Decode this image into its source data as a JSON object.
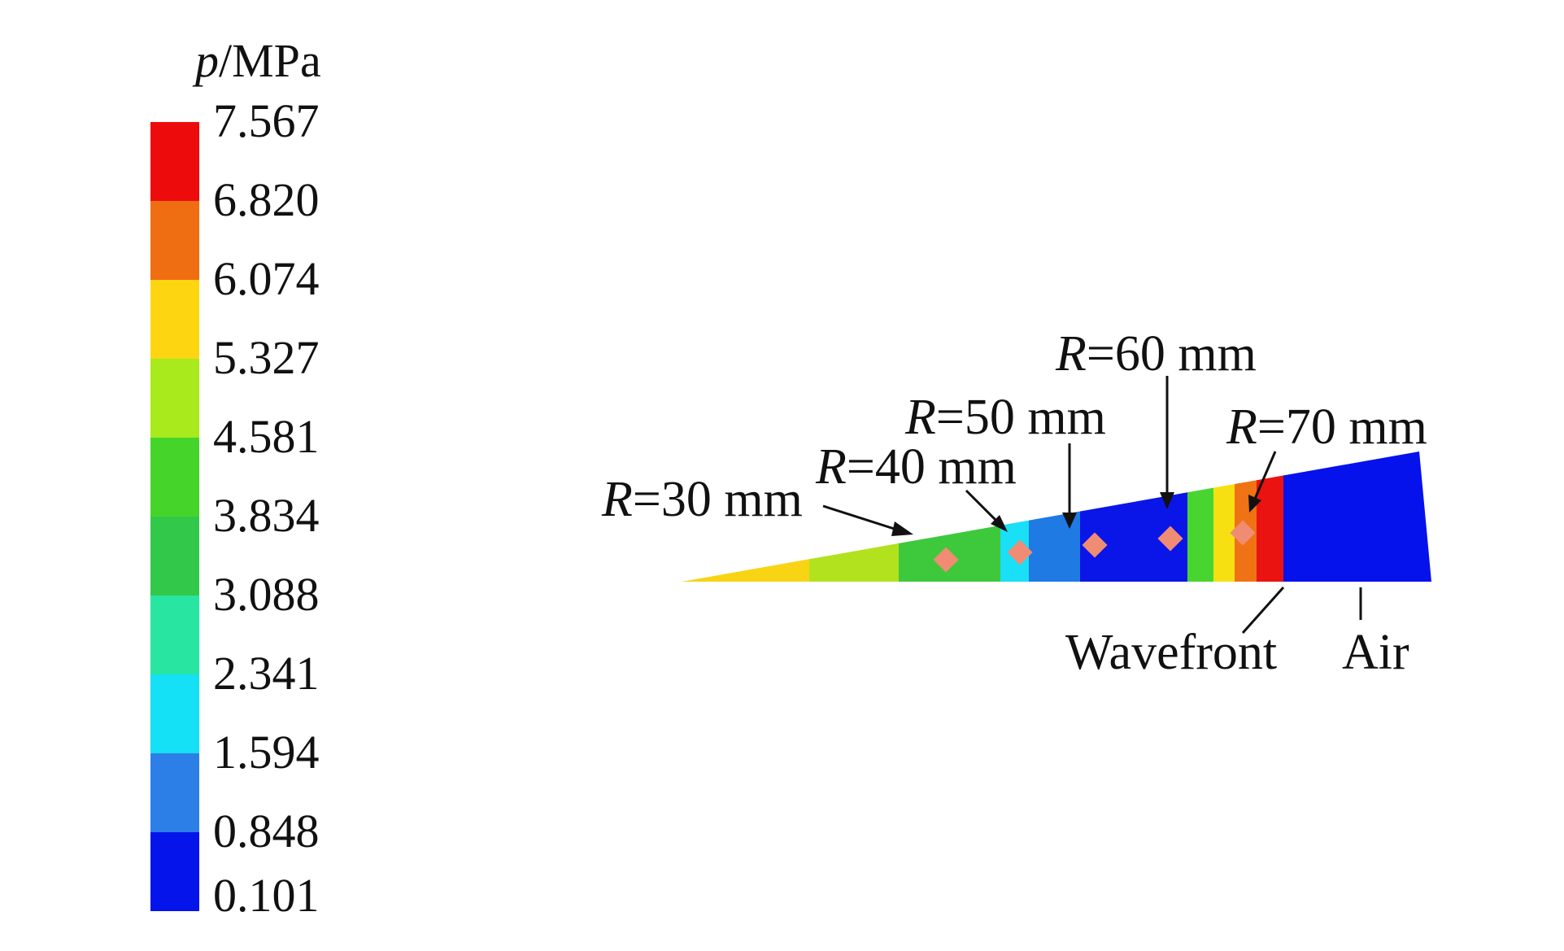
{
  "legend": {
    "unit_symbol": "p",
    "unit_rest": "/MPa",
    "levels": [
      "7.567",
      "6.820",
      "6.074",
      "5.327",
      "4.581",
      "3.834",
      "3.088",
      "2.341",
      "1.594",
      "0.848",
      "0.101"
    ],
    "colors": [
      "#ee0b0b",
      "#ef6e12",
      "#fdd611",
      "#a8ea1c",
      "#45d52a",
      "#32c84a",
      "#28e6a2",
      "#14e0f6",
      "#2d7fe8",
      "#0414ea"
    ]
  },
  "annotations": {
    "r30": {
      "symbol": "R",
      "text": "=30 mm"
    },
    "r40": {
      "symbol": "R",
      "text": "=40 mm"
    },
    "r50": {
      "symbol": "R",
      "text": "=50 mm"
    },
    "r60": {
      "symbol": "R",
      "text": "=60 mm"
    },
    "r70": {
      "symbol": "R",
      "text": "=70 mm"
    },
    "wavefront": "Wavefront",
    "air": "Air"
  },
  "wedge_band_colors": [
    "#f8d414",
    "#b2e21e",
    "#3ec83c",
    "#19e0f6",
    "#1f7ae4",
    "#0a16e8",
    "#48d530",
    "#f7e012",
    "#ef7214",
    "#eb1212",
    "#0612ec"
  ],
  "gauge_marker_color": "#f08c74"
}
